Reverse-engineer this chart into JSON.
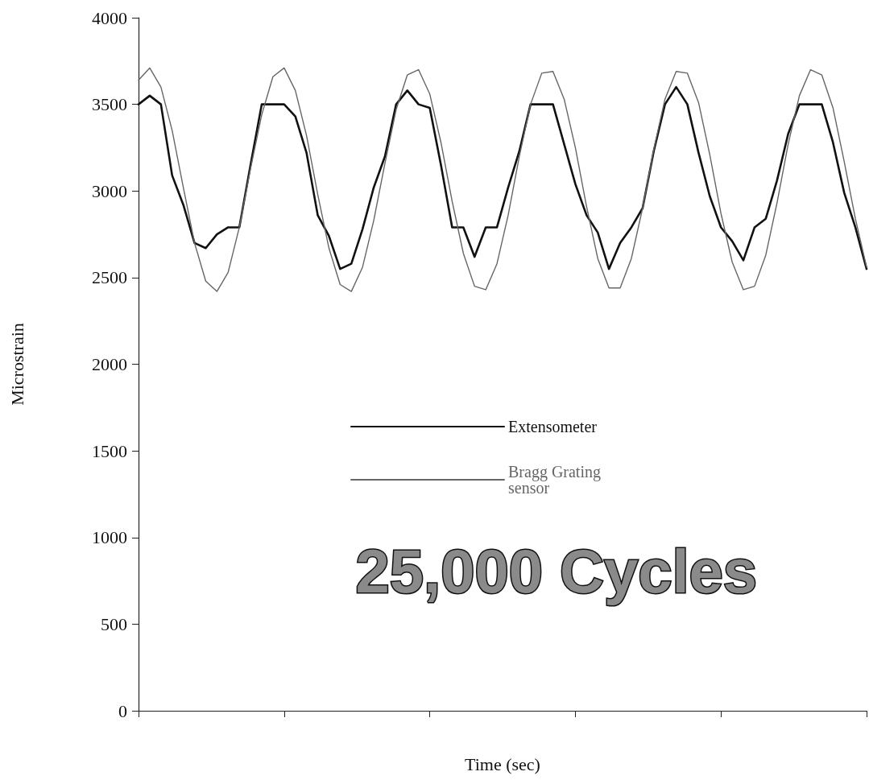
{
  "chart_data": {
    "type": "line",
    "xlabel": "Time (sec)",
    "ylabel": "Microstrain",
    "ylim": [
      0,
      4000
    ],
    "yticks": [
      0,
      500,
      1000,
      1500,
      2000,
      2500,
      3000,
      3500,
      4000
    ],
    "grid": false,
    "legend": "center",
    "marker": "none",
    "annotations": [
      "25,000 Cycles"
    ],
    "categories": [
      null,
      null,
      null,
      null,
      null,
      null,
      null,
      null,
      null,
      null,
      null,
      null,
      null,
      null,
      null,
      null,
      null,
      null,
      null,
      null,
      null,
      null,
      null,
      null,
      null,
      null,
      null,
      null,
      null,
      null,
      null,
      null,
      null,
      null,
      null,
      null,
      null,
      null,
      null,
      null,
      null,
      null,
      null,
      null,
      null,
      null,
      null,
      null,
      null,
      null,
      null,
      null,
      null,
      null,
      null,
      null,
      null,
      null,
      null,
      null,
      null,
      null,
      null,
      null,
      null,
      null
    ],
    "series": [
      {
        "name": "Extensometer",
        "color": "#111111",
        "values": [
          3500,
          3550,
          3500,
          3090,
          2920,
          2700,
          2670,
          2750,
          2790,
          2790,
          3150,
          3500,
          3500,
          3500,
          3430,
          3220,
          2860,
          2740,
          2550,
          2580,
          2780,
          3020,
          3200,
          3500,
          3580,
          3500,
          3480,
          3150,
          2790,
          2790,
          2620,
          2790,
          2790,
          3020,
          3230,
          3500,
          3500,
          3500,
          3270,
          3040,
          2860,
          2760,
          2550,
          2700,
          2790,
          2900,
          3230,
          3500,
          3600,
          3500,
          3220,
          2970,
          2790,
          2710,
          2600,
          2790,
          2840,
          3060,
          3330,
          3500,
          3500,
          3500,
          3280,
          2990,
          2790,
          2550
        ]
      },
      {
        "name": "Bragg Grating sensor",
        "color": "#666666",
        "values": [
          3640,
          3710,
          3600,
          3350,
          3020,
          2700,
          2480,
          2420,
          2530,
          2790,
          3130,
          3440,
          3660,
          3710,
          3580,
          3320,
          2980,
          2670,
          2460,
          2420,
          2560,
          2830,
          3160,
          3470,
          3670,
          3700,
          3560,
          3280,
          2940,
          2640,
          2450,
          2430,
          2580,
          2860,
          3200,
          3500,
          3680,
          3690,
          3530,
          3250,
          2910,
          2610,
          2440,
          2440,
          2610,
          2900,
          3240,
          3530,
          3690,
          3680,
          3510,
          3210,
          2870,
          2590,
          2430,
          2450,
          2630,
          2930,
          3270,
          3550,
          3700,
          3670,
          3480,
          3170,
          2840,
          2560
        ]
      }
    ]
  }
}
